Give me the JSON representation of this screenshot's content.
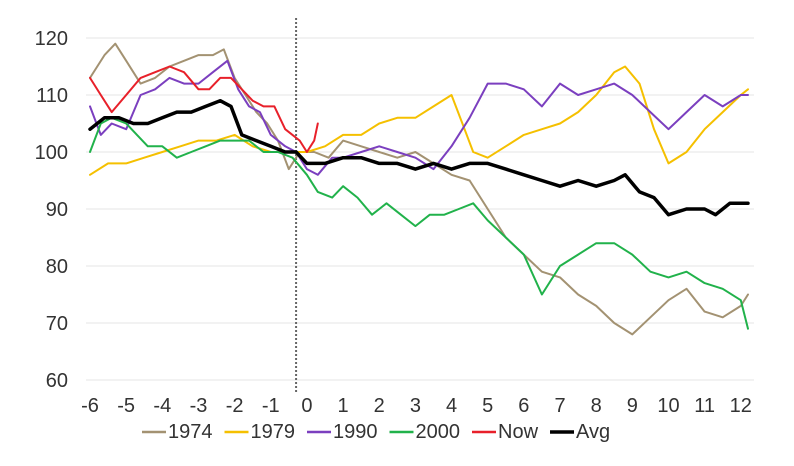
{
  "chart_data": {
    "type": "line",
    "title": "",
    "xlabel": "",
    "ylabel": "",
    "xlim": [
      -6,
      12.2
    ],
    "ylim": [
      60,
      120
    ],
    "yticks": [
      60,
      70,
      80,
      90,
      100,
      110,
      120
    ],
    "xticks": [
      -6,
      -5,
      -4,
      -3,
      -2,
      -1,
      0,
      1,
      2,
      3,
      4,
      5,
      6,
      7,
      8,
      9,
      10,
      11,
      12
    ],
    "grid": "horizontal",
    "legend": "bottom",
    "reference_line_x": -0.3,
    "series": [
      {
        "name": "1974",
        "color": "#a39272",
        "x": [
          -6,
          -5.6,
          -5.3,
          -5,
          -4.6,
          -4.2,
          -3.8,
          -3.4,
          -3,
          -2.6,
          -2.3,
          -2,
          -1.7,
          -1.4,
          -1.1,
          -0.8,
          -0.5,
          -0.2,
          0.2,
          0.6,
          1,
          1.5,
          2,
          2.5,
          3,
          3.5,
          4,
          4.5,
          5,
          5.5,
          6,
          6.5,
          7,
          7.5,
          8,
          8.5,
          9,
          9.5,
          10,
          10.5,
          11,
          11.5,
          12,
          12.2
        ],
        "y": [
          113,
          117,
          119,
          116,
          112,
          113,
          115,
          116,
          117,
          117,
          118,
          113,
          110,
          107,
          105,
          102,
          97,
          100,
          100,
          99,
          102,
          101,
          100,
          99,
          100,
          98,
          96,
          95,
          90,
          85,
          82,
          79,
          78,
          75,
          73,
          70,
          68,
          71,
          74,
          76,
          72,
          71,
          73,
          75
        ]
      },
      {
        "name": "1979",
        "color": "#f5c000",
        "x": [
          -6,
          -5.5,
          -5,
          -4.5,
          -4,
          -3.5,
          -3,
          -2.5,
          -2,
          -1.5,
          -1,
          -0.5,
          0,
          0.5,
          1,
          1.5,
          2,
          2.5,
          3,
          3.5,
          4,
          4.3,
          4.6,
          5,
          5.5,
          6,
          6.5,
          7,
          7.5,
          8,
          8.5,
          8.8,
          9.2,
          9.6,
          10,
          10.5,
          11,
          11.5,
          12,
          12.2
        ],
        "y": [
          96,
          98,
          98,
          99,
          100,
          101,
          102,
          102,
          103,
          101,
          100,
          100,
          100,
          101,
          103,
          103,
          105,
          106,
          106,
          108,
          110,
          105,
          100,
          99,
          101,
          103,
          104,
          105,
          107,
          110,
          114,
          115,
          112,
          104,
          98,
          100,
          104,
          107,
          110,
          111
        ]
      },
      {
        "name": "1990",
        "color": "#7b3fbf",
        "x": [
          -6,
          -5.7,
          -5.4,
          -5,
          -4.6,
          -4.2,
          -3.8,
          -3.4,
          -3,
          -2.6,
          -2.2,
          -1.9,
          -1.6,
          -1.3,
          -1,
          -0.6,
          -0.3,
          0,
          0.3,
          0.7,
          1,
          1.5,
          2,
          2.5,
          3,
          3.5,
          4,
          4.5,
          5,
          5.5,
          6,
          6.5,
          7,
          7.5,
          8,
          8.5,
          9,
          9.5,
          10,
          10.5,
          11,
          11.5,
          12,
          12.2
        ],
        "y": [
          108,
          103,
          105,
          104,
          110,
          111,
          113,
          112,
          112,
          114,
          116,
          111,
          108,
          107,
          103,
          101,
          100,
          97,
          96,
          99,
          99,
          100,
          101,
          100,
          99,
          97,
          101,
          106,
          112,
          112,
          111,
          108,
          112,
          110,
          111,
          112,
          110,
          107,
          104,
          107,
          110,
          108,
          110,
          110
        ]
      },
      {
        "name": "2000",
        "color": "#21b24b",
        "x": [
          -6,
          -5.7,
          -5.4,
          -5,
          -4.7,
          -4.4,
          -4,
          -3.6,
          -3.2,
          -2.8,
          -2.4,
          -2,
          -1.6,
          -1.2,
          -0.8,
          -0.4,
          0,
          0.3,
          0.7,
          1,
          1.4,
          1.8,
          2.2,
          2.6,
          3,
          3.4,
          3.8,
          4.2,
          4.6,
          5,
          5.5,
          6,
          6.5,
          7,
          7.5,
          8,
          8.5,
          9,
          9.5,
          10,
          10.5,
          11,
          11.5,
          12,
          12.2
        ],
        "y": [
          100,
          105,
          106,
          105,
          103,
          101,
          101,
          99,
          100,
          101,
          102,
          102,
          102,
          100,
          100,
          99,
          96,
          93,
          92,
          94,
          92,
          89,
          91,
          89,
          87,
          89,
          89,
          90,
          91,
          88,
          85,
          82,
          75,
          80,
          82,
          84,
          84,
          82,
          79,
          78,
          79,
          77,
          76,
          74,
          69
        ]
      },
      {
        "name": "Now",
        "color": "#e8202a",
        "x": [
          -6,
          -5.7,
          -5.4,
          -5,
          -4.6,
          -4.2,
          -3.8,
          -3.4,
          -3,
          -2.7,
          -2.4,
          -2.1,
          -1.8,
          -1.5,
          -1.2,
          -0.9,
          -0.6,
          -0.4,
          -0.2,
          0,
          0.2,
          0.3
        ],
        "y": [
          113,
          110,
          107,
          110,
          113,
          114,
          115,
          114,
          111,
          111,
          113,
          113,
          111,
          109,
          108,
          108,
          104,
          103,
          102,
          100,
          102,
          105
        ]
      },
      {
        "name": "Avg",
        "color": "#000000",
        "x": [
          -6,
          -5.6,
          -5.2,
          -4.8,
          -4.4,
          -4,
          -3.6,
          -3.2,
          -2.8,
          -2.4,
          -2.1,
          -1.8,
          -1.4,
          -1,
          -0.6,
          -0.3,
          0,
          0.5,
          1,
          1.5,
          2,
          2.5,
          3,
          3.5,
          4,
          4.5,
          5,
          5.5,
          6,
          6.5,
          7,
          7.5,
          8,
          8.5,
          8.8,
          9.2,
          9.6,
          10,
          10.5,
          11,
          11.3,
          11.7,
          12,
          12.2
        ],
        "y": [
          104,
          106,
          106,
          105,
          105,
          106,
          107,
          107,
          108,
          109,
          108,
          103,
          102,
          101,
          100,
          100,
          98,
          98,
          99,
          99,
          98,
          98,
          97,
          98,
          97,
          98,
          98,
          97,
          96,
          95,
          94,
          95,
          94,
          95,
          96,
          93,
          92,
          89,
          90,
          90,
          89,
          91,
          91,
          91
        ]
      }
    ]
  }
}
